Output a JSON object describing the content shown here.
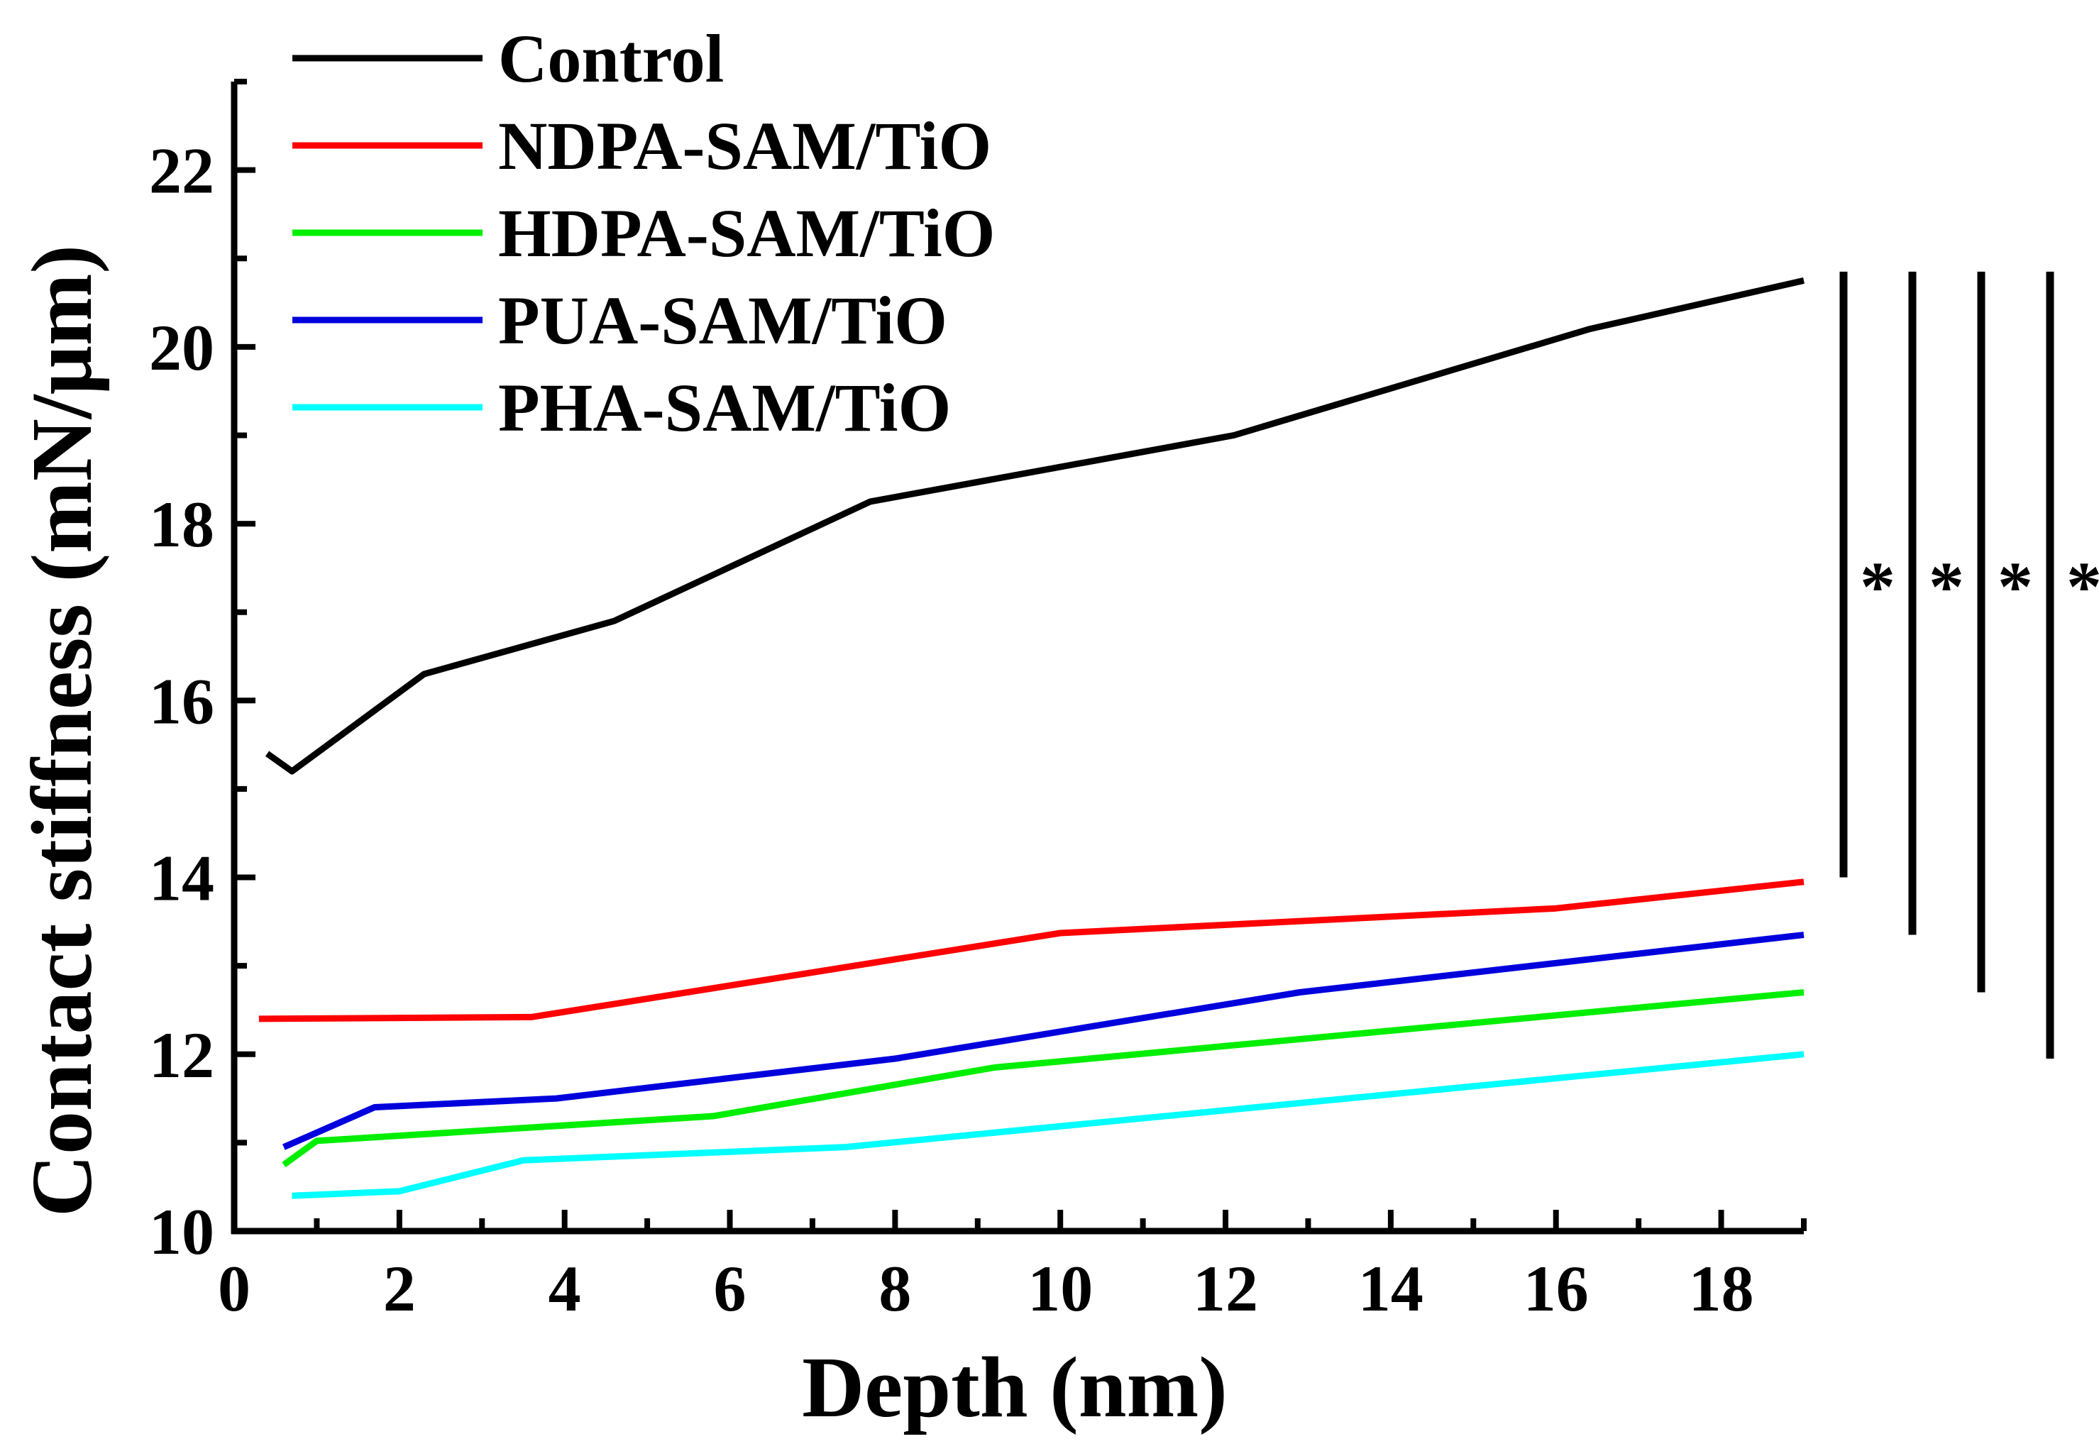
{
  "chart_data": {
    "type": "line",
    "title": "",
    "xlabel": "Depth (nm)",
    "ylabel": "Contact stiffness (mN/μm)",
    "xlim": [
      0,
      19
    ],
    "ylim": [
      10,
      23
    ],
    "x_ticks": [
      0,
      2,
      4,
      6,
      8,
      10,
      12,
      14,
      16,
      18
    ],
    "x_tick_labels": [
      "0",
      "2",
      "4",
      "6",
      "8",
      "10",
      "12",
      "14",
      "16",
      "18"
    ],
    "y_ticks": [
      10,
      12,
      14,
      16,
      18,
      20,
      22
    ],
    "y_tick_labels": [
      "10",
      "12",
      "14",
      "16",
      "18",
      "20",
      "22"
    ],
    "legend_position": "top-left",
    "series": [
      {
        "name": "Control",
        "color": "#000000",
        "points": [
          [
            0.4,
            15.4
          ],
          [
            0.7,
            15.2
          ],
          [
            2.3,
            16.3
          ],
          [
            4.6,
            16.9
          ],
          [
            7.7,
            18.25
          ],
          [
            12.1,
            19.0
          ],
          [
            16.4,
            20.2
          ],
          [
            19.0,
            20.75
          ]
        ]
      },
      {
        "name": "NDPA-SAM/TiO",
        "color": "#ff0000",
        "points": [
          [
            0.3,
            12.4
          ],
          [
            3.6,
            12.42
          ],
          [
            10.0,
            13.37
          ],
          [
            16.0,
            13.65
          ],
          [
            19.0,
            13.95
          ]
        ]
      },
      {
        "name": "HDPA-SAM/TiO",
        "color": "#00ee00",
        "points": [
          [
            0.6,
            10.75
          ],
          [
            1.0,
            11.02
          ],
          [
            5.8,
            11.3
          ],
          [
            9.2,
            11.85
          ],
          [
            19.0,
            12.7
          ]
        ]
      },
      {
        "name": "PUA-SAM/TiO",
        "color": "#0000dd",
        "points": [
          [
            0.6,
            10.95
          ],
          [
            1.7,
            11.4
          ],
          [
            3.9,
            11.5
          ],
          [
            8.0,
            11.95
          ],
          [
            12.9,
            12.7
          ],
          [
            19.0,
            13.35
          ]
        ]
      },
      {
        "name": "PHA-SAM/TiO",
        "color": "#00ffff",
        "points": [
          [
            0.7,
            10.4
          ],
          [
            2.0,
            10.45
          ],
          [
            3.5,
            10.8
          ],
          [
            7.4,
            10.95
          ],
          [
            19.0,
            12.0
          ]
        ]
      }
    ],
    "significance": [
      {
        "label": "*",
        "y_range": [
          14.0,
          20.85
        ]
      },
      {
        "label": "*",
        "y_range": [
          13.35,
          20.85
        ]
      },
      {
        "label": "*",
        "y_range": [
          12.7,
          20.85
        ]
      },
      {
        "label": "*",
        "y_range": [
          11.95,
          20.85
        ]
      }
    ]
  }
}
